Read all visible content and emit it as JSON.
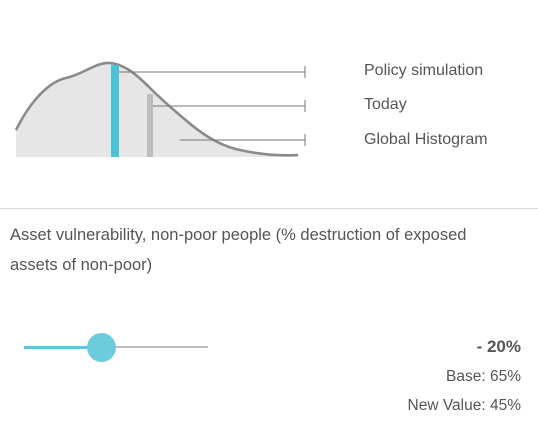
{
  "legend": {
    "policy_label": "Policy simulation",
    "today_label": "Today",
    "histogram_label": "Global Histogram",
    "colors": {
      "policy_marker": "#4bc3d6",
      "today_marker": "#bdbdbd",
      "histogram_fill": "#e6e6e6",
      "curve": "#8a8a8a"
    }
  },
  "parameter": {
    "title": "Asset vulnerability, non-poor people (% destruction of exposed assets of non-poor)",
    "slider_level": 0.42,
    "delta": "- 20%",
    "base": "Base: 65%",
    "new_value": "New Value: 45%",
    "accent_color": "#5bc8dc"
  }
}
